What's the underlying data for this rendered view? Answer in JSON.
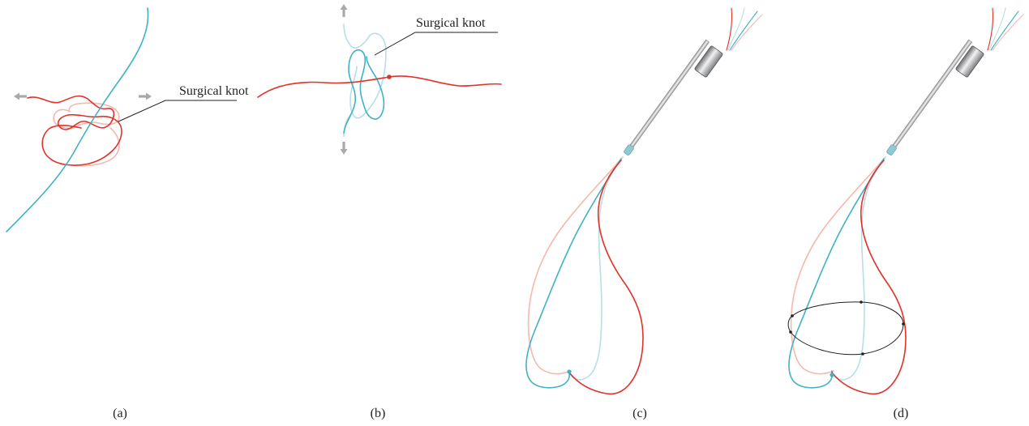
{
  "panels": [
    {
      "caption": "(a)",
      "callout": "Surgical knot"
    },
    {
      "caption": "(b)",
      "callout": "Surgical knot"
    },
    {
      "caption": "(c)"
    },
    {
      "caption": "(d)"
    }
  ],
  "colors": {
    "teal": "#3fb2c4",
    "teal_light": "#b6dfe6",
    "red": "#e2322c",
    "pink": "#f4b8ac",
    "arrow_gray": "#a7a9ac",
    "instrument_gray": "#9a9a9a",
    "loop_black": "#231f20",
    "text": "#231f20"
  },
  "icons": {
    "pull_arrow": "arrow-icon",
    "knot_marker": "dot-icon",
    "instrument": "tube-icon"
  }
}
